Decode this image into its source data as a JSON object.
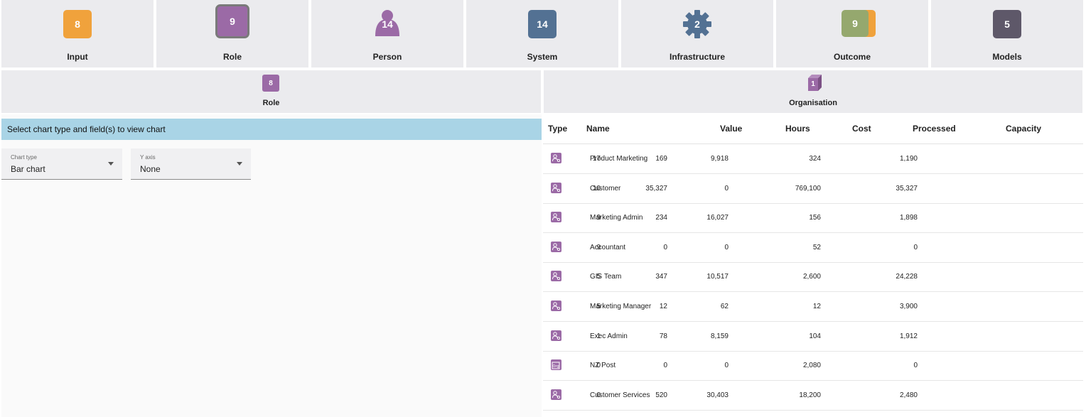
{
  "tiles": [
    {
      "label": "Input",
      "count": "8",
      "color": "#f0a23c",
      "icon": "input-square-icon"
    },
    {
      "label": "Role",
      "count": "9",
      "color": "#9b6aa6",
      "icon": "role-square-icon"
    },
    {
      "label": "Person",
      "count": "14",
      "color": "#9b6aa6",
      "icon": "person-icon"
    },
    {
      "label": "System",
      "count": "14",
      "color": "#537193",
      "icon": "system-square-icon"
    },
    {
      "label": "Infrastructure",
      "count": "2",
      "color": "#537193",
      "icon": "gear-icon"
    },
    {
      "label": "Outcome",
      "count": "9",
      "color": "#95a86e",
      "icon": "outcome-stacked-icon"
    },
    {
      "label": "Models",
      "count": "5",
      "color": "#5e5869",
      "icon": "models-square-icon"
    }
  ],
  "secondary": {
    "role": {
      "label": "Role",
      "count": "8",
      "color": "#9b6aa6"
    },
    "organisation": {
      "label": "Organisation",
      "count": "1",
      "color": "#9b6aa6"
    }
  },
  "chart_panel": {
    "message": "Select chart type and field(s) to view chart",
    "chart_type": {
      "caption": "Chart type",
      "value": "Bar chart"
    },
    "y_axis": {
      "caption": "Y axis",
      "value": "None"
    }
  },
  "table": {
    "headers": {
      "type": "Type",
      "name": "Name",
      "value": "Value",
      "hours": "Hours",
      "cost": "Cost",
      "processed": "Processed",
      "capacity": "Capacity"
    },
    "rows": [
      {
        "icon": "role-icon",
        "name": "Product Marketing",
        "value": "17",
        "hours": "169",
        "cost": "9,918",
        "processed": "324",
        "capacity": "1,190"
      },
      {
        "icon": "role-icon",
        "name": "Customer",
        "value": "10",
        "hours": "35,327",
        "cost": "0",
        "processed": "769,100",
        "capacity": "35,327"
      },
      {
        "icon": "role-icon",
        "name": "Marketing Admin",
        "value": "9",
        "hours": "234",
        "cost": "16,027",
        "processed": "156",
        "capacity": "1,898"
      },
      {
        "icon": "role-icon",
        "name": "Accountant",
        "value": "9",
        "hours": "0",
        "cost": "0",
        "processed": "52",
        "capacity": "0"
      },
      {
        "icon": "role-icon",
        "name": "GIS Team",
        "value": "5",
        "hours": "347",
        "cost": "10,517",
        "processed": "2,600",
        "capacity": "24,228"
      },
      {
        "icon": "role-icon",
        "name": "Marketing Manager",
        "value": "5",
        "hours": "12",
        "cost": "62",
        "processed": "12",
        "capacity": "3,900"
      },
      {
        "icon": "role-icon",
        "name": "Exec Admin",
        "value": "1",
        "hours": "78",
        "cost": "8,159",
        "processed": "104",
        "capacity": "1,912"
      },
      {
        "icon": "organisation-icon",
        "name": "NZ Post",
        "value": "0",
        "hours": "0",
        "cost": "0",
        "processed": "2,080",
        "capacity": "0"
      },
      {
        "icon": "role-icon",
        "name": "Customer Services",
        "value": "0",
        "hours": "520",
        "cost": "30,403",
        "processed": "18,200",
        "capacity": "2,480"
      }
    ]
  }
}
